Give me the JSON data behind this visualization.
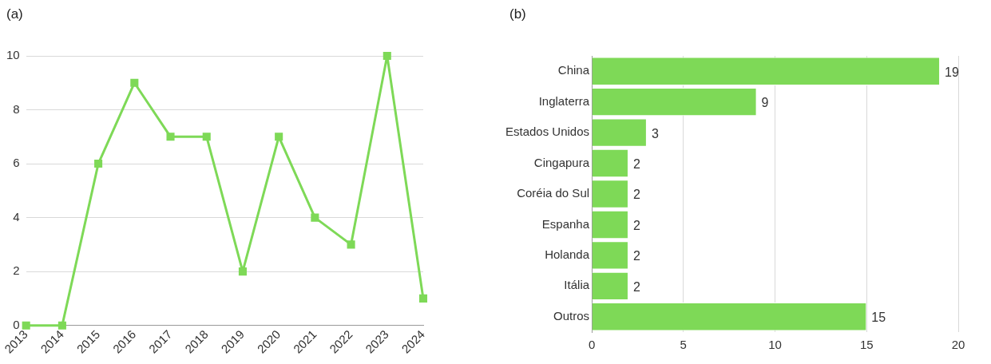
{
  "chart_data": [
    {
      "type": "line",
      "title": "(a)",
      "categories": [
        "2013",
        "2014",
        "2015",
        "2016",
        "2017",
        "2018",
        "2019",
        "2020",
        "2021",
        "2022",
        "2023",
        "2024"
      ],
      "series": [
        {
          "color": "#7ed957",
          "values": [
            0,
            0,
            6,
            9,
            7,
            7,
            2,
            7,
            4,
            3,
            10,
            1
          ]
        }
      ],
      "ylim": [
        0,
        10
      ],
      "yticks": [
        0,
        2,
        4,
        6,
        8,
        10
      ],
      "grid": "y",
      "marker": "square",
      "line_style": "solid"
    },
    {
      "type": "bar",
      "title": "(b)",
      "orientation": "horizontal",
      "categories": [
        "China",
        "Inglaterra",
        "Estados Unidos",
        "Cingapura",
        "Coréia do Sul",
        "Espanha",
        "Holanda",
        "Itália",
        "Outros"
      ],
      "series": [
        {
          "color": "#7ed957",
          "values": [
            19,
            9,
            3,
            2,
            2,
            2,
            2,
            2,
            15
          ]
        }
      ],
      "xlim": [
        0,
        20
      ],
      "xticks": [
        0,
        5,
        10,
        15,
        20
      ],
      "grid": "x",
      "data_labels": true
    }
  ]
}
